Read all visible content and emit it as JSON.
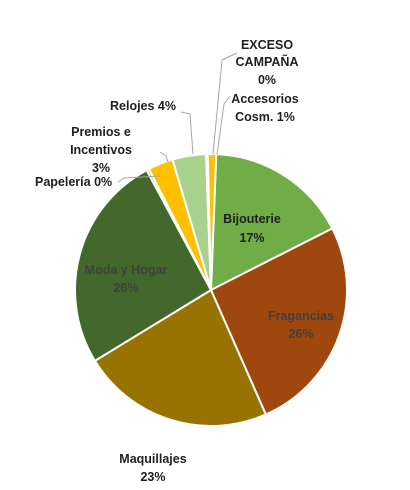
{
  "chart_data": {
    "type": "pie",
    "title": "",
    "legend": "none",
    "slices": [
      {
        "name": "Bijouterie",
        "value": 17,
        "label_line1": "Bijouterie",
        "label_line2": "17%",
        "color": "#70ad47"
      },
      {
        "name": "Fragancias",
        "value": 26,
        "label_line1": "Fragancias",
        "label_line2": "26%",
        "color": "#9e480e"
      },
      {
        "name": "Maquillajes",
        "value": 23,
        "label_line1": "Maquillajes",
        "label_line2": "23%",
        "color": "#997300"
      },
      {
        "name": "Moda y Hogar",
        "value": 26,
        "label_line1": "Moda y Hogar",
        "label_line2": "26%",
        "color": "#43682b"
      },
      {
        "name": "Papelería",
        "value": 0.3,
        "label_line1": "Papelería 0%",
        "color": "#70ad47"
      },
      {
        "name": "Premios e Incentivos",
        "value": 3,
        "label_line1": "Premios e",
        "label_line2": "Incentivos",
        "label_line3": "3%",
        "color": "#ffc000"
      },
      {
        "name": "Relojes",
        "value": 4,
        "label_line1": "Relojes 4%",
        "color": "#a9d18e"
      },
      {
        "name": "EXCESO CAMPAÑA",
        "value": 0.2,
        "label_line1": "EXCESO",
        "label_line2": "CAMPAÑA",
        "label_line3": "0%",
        "color": "#ed7d31"
      },
      {
        "name": "Accesorios Cosm.",
        "value": 1,
        "label_line1": "Accesorios",
        "label_line2": "Cosm. 1%",
        "color": "#ffc000"
      }
    ]
  }
}
